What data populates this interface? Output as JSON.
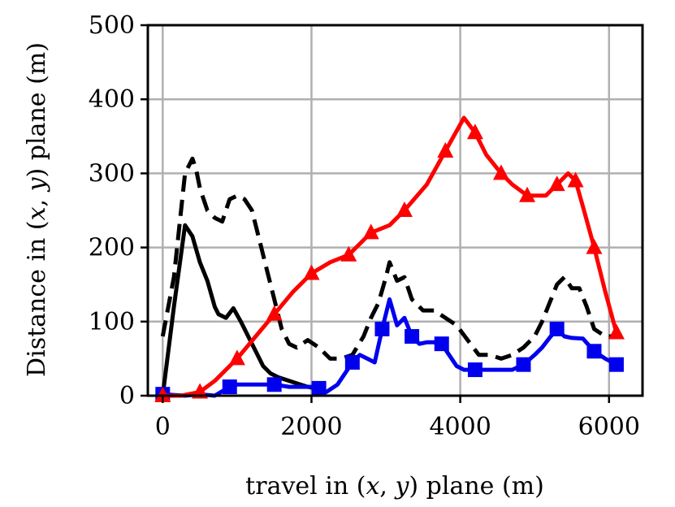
{
  "chart_data": {
    "type": "line",
    "xlabel": "travel in (x, y) plane (m)",
    "ylabel": "Distance in (x, y) plane (m)",
    "xlim": [
      -200,
      6450
    ],
    "ylim": [
      0,
      500
    ],
    "xticks": [
      0,
      2000,
      4000,
      6000
    ],
    "xtick_labels": [
      "0",
      "2000",
      "4000",
      "6000"
    ],
    "yticks": [
      0,
      100,
      200,
      300,
      400,
      500
    ],
    "ytick_labels": [
      "0",
      "100",
      "200",
      "300",
      "400",
      "500"
    ],
    "grid": true,
    "series": [
      {
        "color": "#000000",
        "style": "solid",
        "marker": "none",
        "x": [
          0,
          150,
          300,
          400,
          500,
          600,
          700,
          750,
          850,
          950,
          1050,
          1150,
          1250,
          1350,
          1450,
          1550,
          1700,
          1850,
          1950,
          2050,
          2150
        ],
        "y": [
          0,
          120,
          230,
          215,
          180,
          155,
          120,
          110,
          105,
          118,
          100,
          80,
          60,
          40,
          30,
          25,
          20,
          15,
          12,
          10,
          8
        ]
      },
      {
        "color": "#000000",
        "style": "dashed",
        "marker": "none",
        "x": [
          0,
          150,
          300,
          400,
          450,
          500,
          600,
          700,
          800,
          900,
          1000,
          1100,
          1200,
          1300,
          1400,
          1500,
          1600,
          1700,
          1800,
          1950,
          2100,
          2250,
          2400,
          2550,
          2700,
          2800,
          2900,
          3000,
          3050,
          3150,
          3250,
          3350,
          3500,
          3650,
          3800,
          3950,
          4100,
          4250,
          4400,
          4550,
          4700,
          4850,
          5000,
          5100,
          5200,
          5300,
          5400,
          5500,
          5600,
          5700,
          5800,
          5950,
          6100
        ],
        "y": [
          80,
          160,
          300,
          320,
          305,
          280,
          250,
          240,
          235,
          265,
          270,
          265,
          250,
          210,
          170,
          130,
          90,
          70,
          65,
          75,
          65,
          50,
          50,
          55,
          80,
          105,
          125,
          160,
          180,
          155,
          160,
          130,
          115,
          115,
          105,
          95,
          75,
          55,
          55,
          50,
          55,
          65,
          80,
          100,
          125,
          150,
          160,
          145,
          145,
          120,
          90,
          80,
          80
        ]
      },
      {
        "color": "#0000ee",
        "style": "solid",
        "marker": "square",
        "x": [
          0,
          300,
          500,
          700,
          900,
          1000,
          1200,
          1350,
          1500,
          1700,
          1850,
          2000,
          2100,
          2200,
          2350,
          2450,
          2550,
          2650,
          2750,
          2850,
          2950,
          3050,
          3150,
          3250,
          3350,
          3450,
          3550,
          3650,
          3750,
          3850,
          3950,
          4050,
          4200,
          4350,
          4550,
          4700,
          4850,
          5000,
          5100,
          5200,
          5300,
          5400,
          5500,
          5650,
          5800,
          5950,
          6100
        ],
        "y": [
          2,
          0,
          2,
          0,
          12,
          15,
          15,
          15,
          15,
          12,
          12,
          12,
          10,
          5,
          15,
          30,
          45,
          55,
          50,
          45,
          90,
          130,
          95,
          105,
          80,
          70,
          72,
          72,
          70,
          55,
          40,
          35,
          35,
          35,
          35,
          35,
          42,
          55,
          65,
          78,
          90,
          80,
          78,
          77,
          60,
          50,
          42
        ]
      },
      {
        "color": "#ff0000",
        "style": "solid",
        "marker": "triangle",
        "x": [
          0,
          250,
          500,
          700,
          1000,
          1250,
          1500,
          1750,
          2000,
          2250,
          2500,
          2600,
          2800,
          3050,
          3250,
          3550,
          3800,
          4050,
          4200,
          4350,
          4550,
          4700,
          4900,
          5150,
          5300,
          5450,
          5550,
          5650,
          5800,
          5950,
          6100
        ],
        "y": [
          0,
          0,
          5,
          20,
          50,
          80,
          110,
          140,
          165,
          180,
          190,
          200,
          220,
          230,
          250,
          285,
          330,
          375,
          355,
          325,
          300,
          285,
          270,
          270,
          285,
          300,
          290,
          255,
          200,
          140,
          85
        ]
      }
    ]
  }
}
